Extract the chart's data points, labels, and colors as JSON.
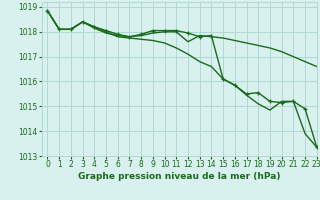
{
  "title": "Graphe pression niveau de la mer (hPa)",
  "bg_color": "#d8f0ee",
  "grid_color": "#b0d8d4",
  "line_color": "#1a6b1a",
  "xlim": [
    -0.5,
    23
  ],
  "ylim": [
    1013,
    1019.2
  ],
  "yticks": [
    1013,
    1014,
    1015,
    1016,
    1017,
    1018,
    1019
  ],
  "xticks": [
    0,
    1,
    2,
    3,
    4,
    5,
    6,
    7,
    8,
    9,
    10,
    11,
    12,
    13,
    14,
    15,
    16,
    17,
    18,
    19,
    20,
    21,
    22,
    23
  ],
  "series": [
    {
      "y": [
        1018.85,
        1018.1,
        1018.1,
        1018.4,
        1018.15,
        1017.95,
        1017.85,
        1017.8,
        1017.85,
        1017.95,
        1018.0,
        1018.0,
        1017.6,
        1017.85,
        1017.8,
        1017.75,
        1017.65,
        1017.55,
        1017.45,
        1017.35,
        1017.2,
        1017.0,
        1016.8,
        1016.6
      ],
      "marker": null,
      "lw": 1.0,
      "zorder": 2
    },
    {
      "y": [
        1018.85,
        1018.1,
        1018.1,
        1018.4,
        1018.2,
        1018.05,
        1017.9,
        1017.8,
        1017.9,
        1018.05,
        1018.05,
        1018.05,
        1017.95,
        1017.8,
        1017.85,
        1016.1,
        1015.85,
        1015.5,
        1015.55,
        1015.2,
        1015.15,
        1015.2,
        1014.9,
        1013.35
      ],
      "marker": "+",
      "lw": 1.0,
      "zorder": 4
    },
    {
      "y": [
        1018.85,
        1018.1,
        1018.1,
        1018.4,
        1018.2,
        1018.0,
        1017.8,
        1017.75,
        1017.7,
        1017.65,
        1017.55,
        1017.35,
        1017.1,
        1016.8,
        1016.6,
        1016.1,
        1015.85,
        1015.45,
        1015.1,
        1014.85,
        1015.2,
        1015.2,
        1013.9,
        1013.35
      ],
      "marker": null,
      "lw": 1.0,
      "zorder": 3
    }
  ],
  "title_fontsize": 6.5,
  "tick_fontsize": 5.5
}
